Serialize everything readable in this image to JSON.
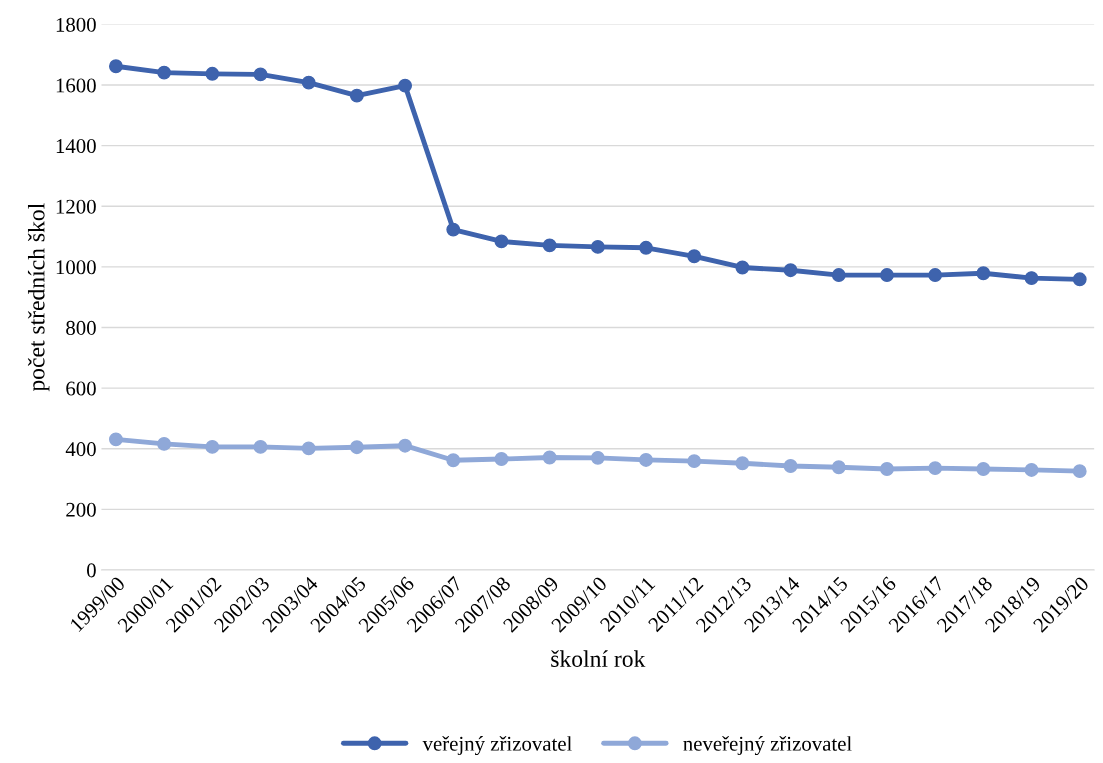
{
  "chart_data": {
    "type": "line",
    "xlabel": "školní rok",
    "ylabel": "počet středních škol",
    "categories": [
      "1999/00",
      "2000/01",
      "2001/02",
      "2002/03",
      "2003/04",
      "2004/05",
      "2005/06",
      "2006/07",
      "2007/08",
      "2008/09",
      "2009/10",
      "2010/11",
      "2011/12",
      "2012/13",
      "2013/14",
      "2014/15",
      "2015/16",
      "2016/17",
      "2017/18",
      "2018/19",
      "2019/20"
    ],
    "series": [
      {
        "name": "veřejný zřizovatel",
        "color": "#3e63ad",
        "values": [
          1662,
          1641,
          1637,
          1635,
          1608,
          1565,
          1598,
          1123,
          1084,
          1071,
          1066,
          1063,
          1035,
          998,
          989,
          973,
          973,
          973,
          979,
          963,
          959
        ]
      },
      {
        "name": "neveřejný zřizovatel",
        "color": "#8fa8d8",
        "values": [
          431,
          416,
          406,
          406,
          401,
          405,
          410,
          362,
          366,
          371,
          370,
          363,
          359,
          352,
          343,
          339,
          333,
          336,
          333,
          330,
          326
        ]
      }
    ],
    "ylim": [
      0,
      1800
    ],
    "yticks": [
      0,
      200,
      400,
      600,
      800,
      1000,
      1200,
      1400,
      1600,
      1800
    ],
    "grid": "y",
    "legend": "bottom",
    "marker": "circle",
    "line_style": "solid"
  }
}
